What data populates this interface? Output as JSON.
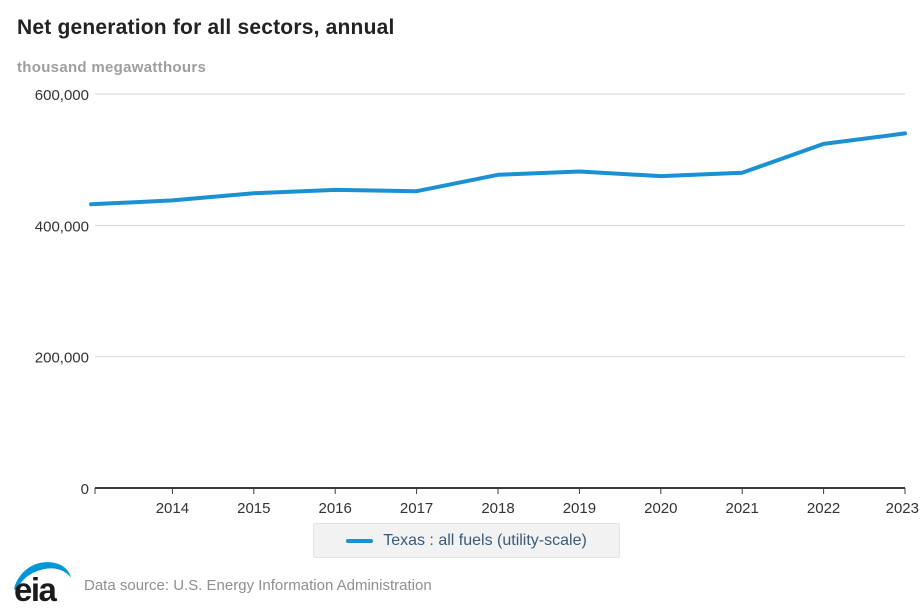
{
  "page": {
    "title": "Net generation for all sectors, annual",
    "units_label": "thousand megawatthours"
  },
  "chart_data": {
    "type": "line",
    "title": "Net generation for all sectors, annual",
    "subtitle": "thousand megawatthours",
    "xlabel": "",
    "ylabel": "thousand megawatthours",
    "xlim": [
      2013,
      2023
    ],
    "ylim": [
      0,
      600000
    ],
    "grid": true,
    "legend_position": "bottom-center",
    "colors": {
      "line": "#1b90d3",
      "grid": "#d6d6d6",
      "axis": "#3c3c3c",
      "title": "#222222",
      "subtitle": "#9e9e9e",
      "legend_text": "#3b5a78",
      "legend_bg": "#f2f2f2",
      "source_text": "#8f8f8f",
      "logo_blue": "#0096d8"
    },
    "y_ticks": [
      {
        "value": 0,
        "label": "0"
      },
      {
        "value": 200000,
        "label": "200,000"
      },
      {
        "value": 400000,
        "label": "400,000"
      },
      {
        "value": 600000,
        "label": "600,000"
      }
    ],
    "x_ticks": [
      {
        "value": 2013,
        "label": ""
      },
      {
        "value": 2014,
        "label": "2014"
      },
      {
        "value": 2015,
        "label": "2015"
      },
      {
        "value": 2016,
        "label": "2016"
      },
      {
        "value": 2017,
        "label": "2017"
      },
      {
        "value": 2018,
        "label": "2018"
      },
      {
        "value": 2019,
        "label": "2019"
      },
      {
        "value": 2020,
        "label": "2020"
      },
      {
        "value": 2021,
        "label": "2021"
      },
      {
        "value": 2022,
        "label": "2022"
      },
      {
        "value": 2023,
        "label": "2023"
      }
    ],
    "series": [
      {
        "name": "Texas : all fuels (utility-scale)",
        "color": "#1b90d3",
        "x": [
          2013,
          2014,
          2015,
          2016,
          2017,
          2018,
          2019,
          2020,
          2021,
          2022,
          2023
        ],
        "values": [
          432000,
          438000,
          449000,
          454000,
          452000,
          477000,
          482000,
          475000,
          480000,
          524000,
          540000
        ]
      }
    ]
  },
  "footer": {
    "logo_text": "eia",
    "source_text": "Data source: U.S. Energy Information Administration"
  }
}
